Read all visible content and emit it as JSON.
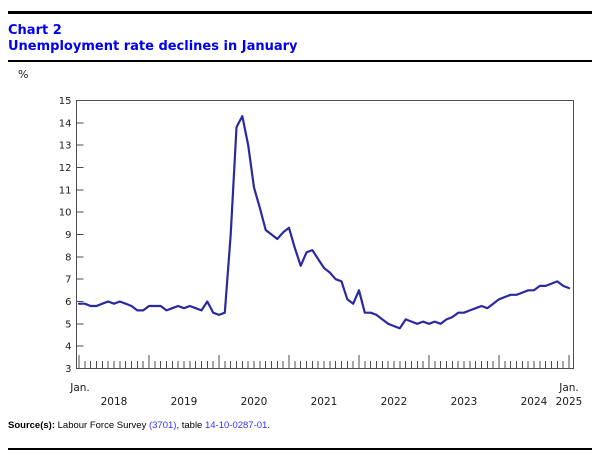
{
  "header": {
    "chart_label": "Chart 2",
    "title": "Unemployment rate declines in January"
  },
  "y_axis": {
    "unit": "%"
  },
  "x_axis": {
    "jan_left": "Jan.",
    "jan_right": "Jan.",
    "years": [
      "2018",
      "2019",
      "2020",
      "2021",
      "2022",
      "2023",
      "2024",
      "2025"
    ]
  },
  "source": {
    "label": "Source(s):",
    "part1": " Labour Force Survey ",
    "link1": "(3701)",
    "part2": ", table ",
    "link2": "14-10-0287-01",
    "part3": "."
  },
  "chart_data": {
    "type": "line",
    "title": "Unemployment rate declines in January",
    "ylabel": "%",
    "ylim": [
      3,
      15
    ],
    "ytick_step": 1,
    "x_start": "2018-01",
    "x_end": "2025-01",
    "x_frequency": "monthly",
    "grid": false,
    "legend": "none",
    "line_color": "#2a2aa0",
    "frame_color": "#4d4d4d",
    "series": [
      {
        "name": "Unemployment rate (%)",
        "values": [
          5.9,
          5.9,
          5.8,
          5.8,
          5.9,
          6.0,
          5.9,
          6.0,
          5.9,
          5.8,
          5.6,
          5.6,
          5.8,
          5.8,
          5.8,
          5.6,
          5.7,
          5.8,
          5.7,
          5.8,
          5.7,
          5.6,
          6.0,
          5.5,
          5.4,
          5.5,
          9.0,
          13.8,
          14.3,
          13.0,
          11.1,
          10.2,
          9.2,
          9.0,
          8.8,
          9.1,
          9.3,
          8.4,
          7.6,
          8.2,
          8.3,
          7.9,
          7.5,
          7.3,
          7.0,
          6.9,
          6.1,
          5.9,
          6.5,
          5.5,
          5.5,
          5.4,
          5.2,
          5.0,
          4.9,
          4.8,
          5.2,
          5.1,
          5.0,
          5.1,
          5.0,
          5.1,
          5.0,
          5.2,
          5.3,
          5.5,
          5.5,
          5.6,
          5.7,
          5.8,
          5.7,
          5.9,
          6.1,
          6.2,
          6.3,
          6.3,
          6.4,
          6.5,
          6.5,
          6.7,
          6.7,
          6.8,
          6.9,
          6.7,
          6.6
        ]
      }
    ]
  }
}
